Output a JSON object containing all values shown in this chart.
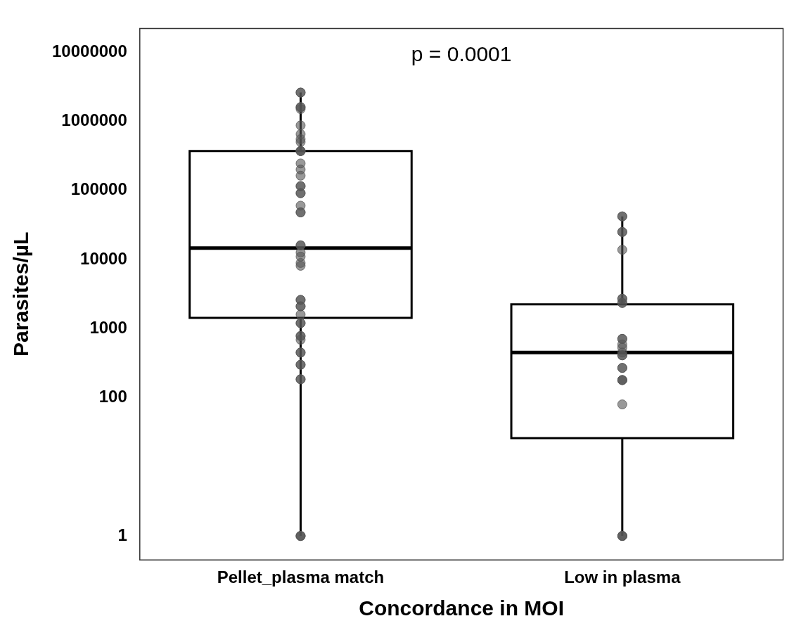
{
  "chart_data": {
    "type": "box",
    "annotations": [
      "p = 0.0001"
    ],
    "xlabel": "Concordance in MOI",
    "ylabel": "Parasites/µL",
    "categories": [
      "Pellet_plasma match",
      "Low in plasma"
    ],
    "boxes": [
      {
        "low": 1,
        "q1": 1430,
        "median": 14600,
        "q3": 370000,
        "high": 2600000
      },
      {
        "low": 1,
        "q1": 26,
        "median": 450,
        "q3": 2240,
        "high": 42000
      }
    ],
    "series": [
      {
        "type": "scatter",
        "color": "#555555",
        "x": [
          "Pellet_plasma match",
          "Pellet_plasma match",
          "Pellet_plasma match",
          "Pellet_plasma match",
          "Pellet_plasma match",
          "Pellet_plasma match",
          "Pellet_plasma match",
          "Pellet_plasma match",
          "Pellet_plasma match",
          "Pellet_plasma match",
          "Pellet_plasma match",
          "Pellet_plasma match",
          "Pellet_plasma match",
          "Pellet_plasma match",
          "Pellet_plasma match",
          "Pellet_plasma match",
          "Pellet_plasma match",
          "Pellet_plasma match",
          "Pellet_plasma match",
          "Pellet_plasma match",
          "Pellet_plasma match",
          "Pellet_plasma match",
          "Pellet_plasma match",
          "Pellet_plasma match",
          "Pellet_plasma match",
          "Pellet_plasma match",
          "Pellet_plasma match",
          "Pellet_plasma match",
          "Pellet_plasma match",
          "Pellet_plasma match",
          "Pellet_plasma match",
          "Pellet_plasma match",
          "Pellet_plasma match",
          "Pellet_plasma match",
          "Pellet_plasma match",
          "Pellet_plasma match",
          "Pellet_plasma match",
          "Pellet_plasma match",
          "Pellet_plasma match",
          "Pellet_plasma match",
          "Pellet_plasma match",
          "Pellet_plasma match",
          "Pellet_plasma match",
          "Pellet_plasma match",
          "Pellet_plasma match",
          "Pellet_plasma match",
          "Pellet_plasma match",
          "Low in plasma",
          "Low in plasma",
          "Low in plasma",
          "Low in plasma",
          "Low in plasma",
          "Low in plasma",
          "Low in plasma",
          "Low in plasma",
          "Low in plasma",
          "Low in plasma",
          "Low in plasma",
          "Low in plasma",
          "Low in plasma",
          "Low in plasma",
          "Low in plasma",
          "Low in plasma",
          "Low in plasma",
          "Low in plasma",
          "Low in plasma",
          "Low in plasma",
          "Low in plasma",
          "Low in plasma",
          "Low in plasma",
          "Low in plasma",
          "Low in plasma"
        ],
        "values": [
          2600000,
          2600000,
          1600000,
          1600000,
          1500000,
          870000,
          650000,
          550000,
          500000,
          370000,
          370000,
          370000,
          245000,
          200000,
          163000,
          115000,
          115000,
          91000,
          91000,
          60000,
          48000,
          48000,
          16000,
          16000,
          12600,
          11000,
          8900,
          8100,
          2600,
          2600,
          2100,
          2100,
          1600,
          1200,
          1200,
          780,
          780,
          690,
          450,
          450,
          300,
          300,
          185,
          185,
          1,
          1,
          1,
          42000,
          42000,
          25000,
          25000,
          13800,
          2700,
          2700,
          2350,
          2350,
          710,
          710,
          590,
          530,
          450,
          410,
          410,
          270,
          270,
          180,
          180,
          180,
          80,
          1,
          1,
          1
        ]
      }
    ],
    "ylim": [
      0.45,
      22000000
    ],
    "yticks": [
      1,
      100,
      1000,
      10000,
      100000,
      1000000,
      10000000
    ],
    "log": true,
    "grid": false,
    "legend": false,
    "marker": "circle"
  }
}
